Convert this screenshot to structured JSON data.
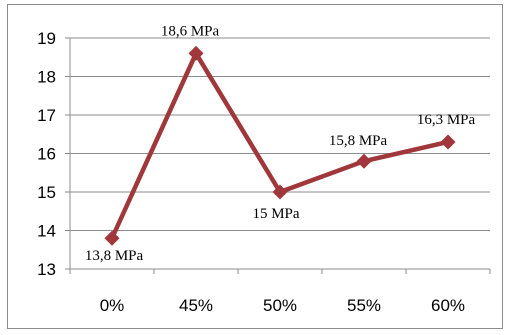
{
  "chart_data": {
    "type": "line",
    "categories": [
      "0%",
      "45%",
      "50%",
      "55%",
      "60%"
    ],
    "series": [
      {
        "values": [
          13.8,
          18.6,
          15,
          15.8,
          16.3
        ],
        "data_labels": [
          "13,8 MPa",
          "18,6 MPa",
          "15 MPa",
          "15,8 MPa",
          "16,3 MPa"
        ],
        "color": "#a0373a",
        "marker": "diamond"
      }
    ],
    "y_ticks": [
      "13",
      "14",
      "15",
      "16",
      "17",
      "18",
      "19"
    ],
    "ylim": [
      13,
      19
    ],
    "grid": "horizontal",
    "legend": "none",
    "title": "",
    "xlabel": "",
    "ylabel": ""
  }
}
